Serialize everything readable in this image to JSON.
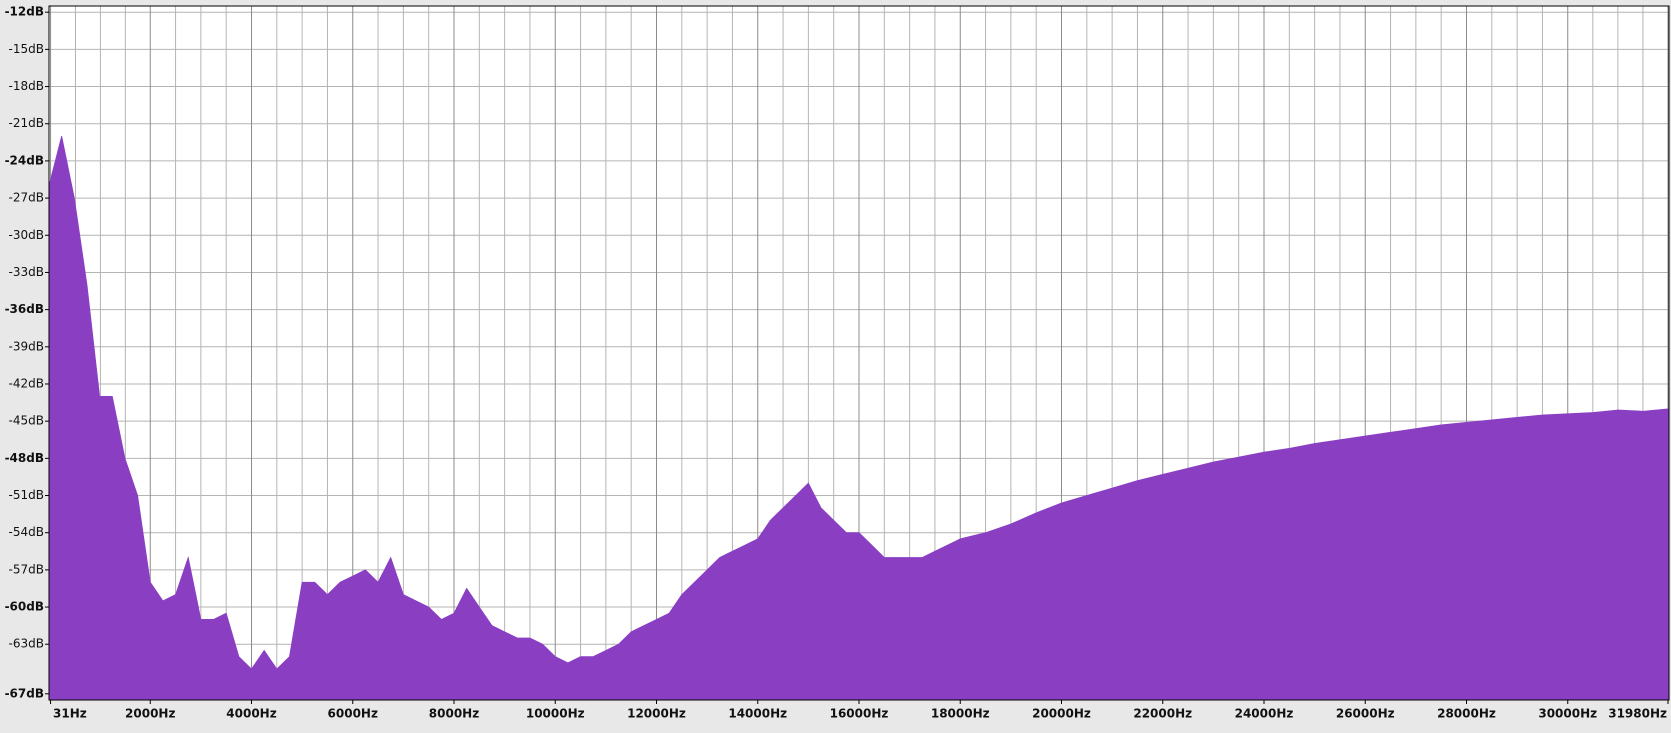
{
  "chart_data": {
    "type": "area",
    "color": "#8a3fc3",
    "grid": true,
    "xlim": [
      0,
      32000
    ],
    "ylim": [
      -67.5,
      -11.5
    ],
    "xticks": [
      {
        "value": 31,
        "label": "31Hz"
      },
      {
        "value": 2000,
        "label": "2000Hz"
      },
      {
        "value": 4000,
        "label": "4000Hz"
      },
      {
        "value": 6000,
        "label": "6000Hz"
      },
      {
        "value": 8000,
        "label": "8000Hz"
      },
      {
        "value": 10000,
        "label": "10000Hz"
      },
      {
        "value": 12000,
        "label": "12000Hz"
      },
      {
        "value": 14000,
        "label": "14000Hz"
      },
      {
        "value": 16000,
        "label": "16000Hz"
      },
      {
        "value": 18000,
        "label": "18000Hz"
      },
      {
        "value": 20000,
        "label": "20000Hz"
      },
      {
        "value": 22000,
        "label": "22000Hz"
      },
      {
        "value": 24000,
        "label": "24000Hz"
      },
      {
        "value": 26000,
        "label": "26000Hz"
      },
      {
        "value": 28000,
        "label": "28000Hz"
      },
      {
        "value": 30000,
        "label": "30000Hz"
      },
      {
        "value": 31980,
        "label": "31980Hz"
      }
    ],
    "yticks": [
      {
        "value": -12,
        "label": "-12dB"
      },
      {
        "value": -15,
        "label": "-15dB"
      },
      {
        "value": -18,
        "label": "-18dB"
      },
      {
        "value": -21,
        "label": "-21dB"
      },
      {
        "value": -24,
        "label": "-24dB"
      },
      {
        "value": -27,
        "label": "-27dB"
      },
      {
        "value": -30,
        "label": "-30dB"
      },
      {
        "value": -33,
        "label": "-33dB"
      },
      {
        "value": -36,
        "label": "-36dB"
      },
      {
        "value": -39,
        "label": "-39dB"
      },
      {
        "value": -42,
        "label": "-42dB"
      },
      {
        "value": -45,
        "label": "-45dB"
      },
      {
        "value": -48,
        "label": "-48dB"
      },
      {
        "value": -51,
        "label": "-51dB"
      },
      {
        "value": -54,
        "label": "-54dB"
      },
      {
        "value": -57,
        "label": "-57dB"
      },
      {
        "value": -60,
        "label": "-60dB"
      },
      {
        "value": -63,
        "label": "-63dB"
      },
      {
        "value": -67,
        "label": "-67dB"
      }
    ],
    "x": [
      0,
      250,
      500,
      750,
      1000,
      1250,
      1500,
      1750,
      2000,
      2250,
      2500,
      2750,
      3000,
      3250,
      3500,
      3750,
      4000,
      4250,
      4500,
      4750,
      5000,
      5250,
      5500,
      5750,
      6000,
      6250,
      6500,
      6750,
      7000,
      7250,
      7500,
      7750,
      8000,
      8250,
      8500,
      8750,
      9000,
      9250,
      9500,
      9750,
      10000,
      10250,
      10500,
      10750,
      11000,
      11250,
      11500,
      11750,
      12000,
      12250,
      12500,
      12750,
      13000,
      13250,
      13500,
      13750,
      14000,
      14250,
      14500,
      14750,
      15000,
      15250,
      15500,
      15750,
      16000,
      16250,
      16500,
      16750,
      17000,
      17250,
      17500,
      17750,
      18000,
      18500,
      19000,
      19500,
      20000,
      20500,
      21000,
      21500,
      22000,
      22500,
      23000,
      23500,
      24000,
      24500,
      25000,
      25500,
      26000,
      26500,
      27000,
      27500,
      28000,
      28500,
      29000,
      29500,
      30000,
      30500,
      31000,
      31500,
      32000
    ],
    "values": [
      -26,
      -22,
      -27,
      -34,
      -43,
      -43,
      -48,
      -51,
      -58,
      -59.5,
      -59,
      -56,
      -61,
      -61,
      -60.5,
      -64,
      -65,
      -63.5,
      -65,
      -64,
      -58,
      -58,
      -59,
      -58,
      -57.5,
      -57,
      -58,
      -56,
      -59,
      -59.5,
      -60,
      -61,
      -60.5,
      -58.5,
      -60,
      -61.5,
      -62,
      -62.5,
      -62.5,
      -63,
      -64,
      -64.5,
      -64,
      -64,
      -63.5,
      -63,
      -62,
      -61.5,
      -61,
      -60.5,
      -59,
      -58,
      -57,
      -56,
      -55.5,
      -55,
      -54.5,
      -53,
      -52,
      -51,
      -50,
      -52,
      -53,
      -54,
      -54,
      -55,
      -56,
      -56,
      -56,
      -56,
      -55.5,
      -55,
      -54.5,
      -54,
      -53.3,
      -52.4,
      -51.6,
      -51,
      -50.4,
      -49.8,
      -49.3,
      -48.8,
      -48.3,
      -47.9,
      -47.5,
      -47.2,
      -46.8,
      -46.5,
      -46.2,
      -45.9,
      -45.6,
      -45.3,
      -45.1,
      -44.9,
      -44.7,
      -44.5,
      -44.4,
      -44.3,
      -44.1,
      -44.2,
      -44
    ]
  }
}
